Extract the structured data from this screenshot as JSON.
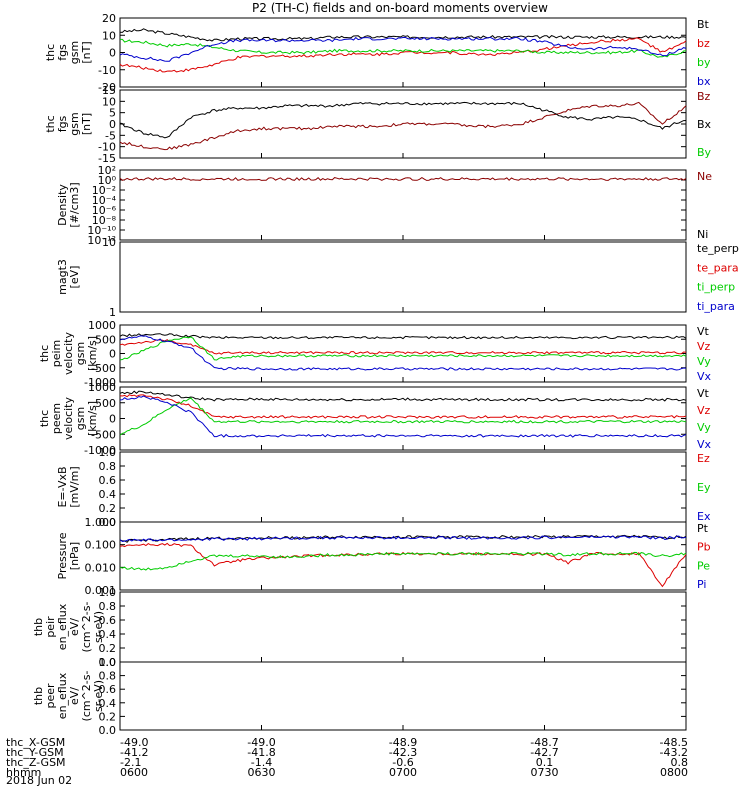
{
  "title": "P2 (TH-C) fields and on-board moments overview",
  "date_label": "2018 Jun 02",
  "chart_data": {
    "type": "line",
    "title": "P2 (TH-C) fields and on-board moments overview",
    "x_range_hhmm": [
      "0600",
      "0800"
    ],
    "panels": [
      {
        "ylabel": [
          "thc",
          "fgs",
          "gsm",
          "[nT]"
        ],
        "ylim": [
          -20,
          20
        ],
        "yticks": [
          "20",
          "10",
          "0",
          "-10",
          "-20"
        ],
        "series": [
          {
            "name": "Bt",
            "color": "#000000",
            "values": [
              12,
              13,
              11,
              9,
              7,
              8,
              8,
              8,
              8,
              9,
              9,
              9,
              9,
              9,
              9,
              9,
              9,
              9,
              9,
              9,
              9,
              9,
              9,
              9,
              9
            ]
          },
          {
            "name": "bz",
            "color": "#dd0000",
            "values": [
              -7,
              -9,
              -11,
              -10,
              -7,
              -3,
              -2,
              -2,
              -2,
              -1,
              -1,
              -1,
              0,
              0,
              0,
              -1,
              -1,
              0,
              2,
              4,
              6,
              7,
              8,
              0,
              6
            ]
          },
          {
            "name": "by",
            "color": "#00cc00",
            "values": [
              7,
              6,
              4,
              5,
              3,
              1,
              0,
              0,
              0,
              1,
              1,
              1,
              1,
              1,
              1,
              1,
              1,
              1,
              0,
              0,
              0,
              0,
              1,
              -3,
              1
            ]
          },
          {
            "name": "bx",
            "color": "#0000cc",
            "values": [
              -1,
              -3,
              -5,
              0,
              5,
              7,
              7,
              7,
              7,
              7,
              8,
              8,
              8,
              8,
              8,
              8,
              8,
              8,
              6,
              3,
              2,
              3,
              2,
              -2,
              3
            ]
          }
        ],
        "legend": [
          "Bt",
          "bz",
          "by",
          "bx"
        ]
      },
      {
        "ylabel": [
          "thc",
          "fgs",
          "gsm",
          "[nT]"
        ],
        "ylim": [
          -15,
          15
        ],
        "yticks": [
          "15",
          "10",
          "5",
          "0",
          "-5",
          "-10",
          "-15"
        ],
        "series": [
          {
            "name": "Bz",
            "color": "#8b0000",
            "values": [
              -8,
              -10,
              -11,
              -9,
              -6,
              -3,
              -2,
              -2,
              -2,
              -1,
              -1,
              -1,
              0,
              0,
              0,
              -1,
              -1,
              0,
              3,
              6,
              8,
              8,
              9,
              0,
              8
            ]
          },
          {
            "name": "Bx",
            "color": "#000000",
            "values": [
              0,
              -4,
              -6,
              3,
              6,
              7,
              7,
              8,
              8,
              8,
              9,
              9,
              9,
              9,
              9,
              9,
              9,
              9,
              6,
              3,
              2,
              3,
              2,
              -2,
              2
            ]
          }
        ],
        "legend": [
          "Bz",
          "Bx",
          "By"
        ]
      },
      {
        "ylabel": [
          "Density",
          "[#/cm3]"
        ],
        "ylim_log": [
          -12,
          2
        ],
        "yticks": [
          "10²",
          "10⁰",
          "10⁻²",
          "10⁻⁴",
          "10⁻⁶",
          "10⁻⁸",
          "10⁻¹⁰",
          "10⁻¹²"
        ],
        "series": [
          {
            "name": "Ne",
            "color": "#8b0000",
            "values_log": [
              0.2,
              0.2,
              0.2,
              0.2,
              0.2,
              0.2,
              0.2,
              0.2,
              0.2,
              0.2,
              0.2,
              0.2,
              0.2,
              0.2,
              0.2,
              0.2,
              0.2,
              0.2,
              0.2,
              0.2,
              0.2,
              0.2,
              0.2,
              0.2,
              0.2
            ]
          }
        ],
        "legend": [
          "Ne",
          "Ni"
        ]
      },
      {
        "ylabel": [
          "magt3",
          "[eV]"
        ],
        "yticks": [
          "10",
          "1"
        ],
        "series": [],
        "legend": [
          "te_perp",
          "te_para",
          "ti_perp",
          "ti_para"
        ]
      },
      {
        "ylabel": [
          "thc",
          "peim",
          "velocity",
          "gsm",
          "[km/s]"
        ],
        "ylim": [
          -1000,
          1000
        ],
        "yticks": [
          "1000",
          "500",
          "0",
          "-500",
          "-1000"
        ],
        "series": [
          {
            "name": "Vt",
            "color": "#000000",
            "values": [
              620,
              660,
              660,
              600,
              560,
              560,
              560,
              560,
              560,
              560,
              560,
              560,
              560,
              560,
              560,
              560,
              560,
              560,
              560,
              560,
              560,
              560,
              560,
              560,
              570
            ]
          },
          {
            "name": "Vz",
            "color": "#dd0000",
            "values": [
              300,
              400,
              460,
              300,
              0,
              30,
              30,
              30,
              30,
              30,
              30,
              30,
              30,
              30,
              30,
              30,
              30,
              30,
              30,
              30,
              30,
              30,
              30,
              30,
              30
            ]
          },
          {
            "name": "Vy",
            "color": "#00cc00",
            "values": [
              -250,
              100,
              450,
              600,
              -200,
              -100,
              -80,
              -80,
              -80,
              -80,
              -80,
              -80,
              -80,
              -80,
              -80,
              -80,
              -80,
              -80,
              -80,
              -80,
              -80,
              -80,
              -80,
              -80,
              -80
            ]
          },
          {
            "name": "Vx",
            "color": "#0000cc",
            "values": [
              500,
              600,
              420,
              200,
              -530,
              -530,
              -540,
              -540,
              -540,
              -540,
              -540,
              -540,
              -540,
              -540,
              -540,
              -540,
              -540,
              -540,
              -540,
              -540,
              -540,
              -540,
              -540,
              -540,
              -540
            ]
          }
        ],
        "legend": [
          "Vt",
          "Vz",
          "Vy",
          "Vx"
        ]
      },
      {
        "ylabel": [
          "thc",
          "peem",
          "velocity",
          "gsm",
          "[km/s]"
        ],
        "ylim": [
          -1000,
          1000
        ],
        "yticks": [
          "1000",
          "500",
          "0",
          "-500",
          "-1000"
        ],
        "series": [
          {
            "name": "Vt",
            "color": "#000000",
            "values": [
              800,
              850,
              750,
              650,
              600,
              600,
              620,
              600,
              600,
              600,
              600,
              600,
              620,
              600,
              600,
              600,
              600,
              600,
              600,
              600,
              600,
              600,
              600,
              600,
              600
            ]
          },
          {
            "name": "Vz",
            "color": "#dd0000",
            "values": [
              700,
              750,
              600,
              400,
              50,
              50,
              50,
              50,
              50,
              50,
              50,
              50,
              50,
              50,
              50,
              50,
              50,
              50,
              50,
              50,
              50,
              50,
              50,
              50,
              50
            ]
          },
          {
            "name": "Vy",
            "color": "#00cc00",
            "values": [
              -500,
              -200,
              300,
              650,
              -100,
              -100,
              -100,
              -100,
              -100,
              -100,
              -100,
              -100,
              -100,
              -100,
              -100,
              -100,
              -100,
              -100,
              -100,
              -100,
              -100,
              -100,
              -100,
              -100,
              -100
            ]
          },
          {
            "name": "Vx",
            "color": "#0000cc",
            "values": [
              600,
              700,
              500,
              200,
              -550,
              -550,
              -550,
              -550,
              -550,
              -550,
              -550,
              -550,
              -550,
              -550,
              -550,
              -550,
              -550,
              -550,
              -550,
              -550,
              -550,
              -550,
              -550,
              -550,
              -550
            ]
          }
        ],
        "legend": [
          "Vt",
          "Vz",
          "Vy",
          "Vx"
        ]
      },
      {
        "ylabel": [
          "E=-VxB",
          "[mV/m]"
        ],
        "yticks": [
          "1.0",
          "0.8",
          "0.6",
          "0.4",
          "0.2",
          "0.0"
        ],
        "series": [],
        "legend": [
          "Ez",
          "Ey",
          "Ex"
        ]
      },
      {
        "ylabel": [
          "Pressure",
          "[nPa]"
        ],
        "ylim_log": [
          -3,
          0
        ],
        "yticks": [
          "1.000",
          "0.100",
          "0.010",
          "0.001"
        ],
        "series": [
          {
            "name": "Pt",
            "color": "#000000",
            "values_log": [
              -0.85,
              -0.8,
              -0.78,
              -0.75,
              -0.72,
              -0.72,
              -0.7,
              -0.7,
              -0.68,
              -0.67,
              -0.66,
              -0.66,
              -0.66,
              -0.66,
              -0.66,
              -0.66,
              -0.66,
              -0.66,
              -0.65,
              -0.65,
              -0.64,
              -0.64,
              -0.64,
              -0.7,
              -0.64
            ]
          },
          {
            "name": "Pb",
            "color": "#dd0000",
            "values_log": [
              -1.05,
              -1.0,
              -1.0,
              -1.05,
              -1.9,
              -1.7,
              -1.6,
              -1.55,
              -1.5,
              -1.45,
              -1.45,
              -1.4,
              -1.4,
              -1.4,
              -1.4,
              -1.4,
              -1.4,
              -1.45,
              -1.4,
              -1.8,
              -1.4,
              -1.4,
              -1.4,
              -2.8,
              -1.4
            ]
          },
          {
            "name": "Pe",
            "color": "#00cc00",
            "values_log": [
              -2.0,
              -2.1,
              -2.0,
              -1.7,
              -1.5,
              -1.5,
              -1.5,
              -1.55,
              -1.5,
              -1.45,
              -1.45,
              -1.4,
              -1.4,
              -1.4,
              -1.4,
              -1.4,
              -1.4,
              -1.4,
              -1.4,
              -1.45,
              -1.4,
              -1.4,
              -1.4,
              -1.5,
              -1.4
            ]
          },
          {
            "name": "Pi",
            "color": "#0000cc",
            "values_log": [
              -0.82,
              -0.8,
              -0.8,
              -0.78,
              -0.75,
              -0.75,
              -0.73,
              -0.72,
              -0.7,
              -0.7,
              -0.7,
              -0.7,
              -0.7,
              -0.7,
              -0.7,
              -0.7,
              -0.7,
              -0.7,
              -0.68,
              -0.68,
              -0.66,
              -0.66,
              -0.66,
              -0.72,
              -0.66
            ]
          }
        ],
        "legend": [
          "Pt",
          "Pb",
          "Pe",
          "Pi"
        ]
      },
      {
        "ylabel": [
          "thb",
          "peir",
          "en_eflux",
          "eV/",
          "(cm^2-s-",
          "sr-eV)"
        ],
        "yticks": [
          "1.0",
          "0.8",
          "0.6",
          "0.4",
          "0.2",
          "0.0"
        ],
        "series": [],
        "legend": []
      },
      {
        "ylabel": [
          "thb",
          "peer",
          "en_eflux",
          "eV/",
          "(cm^2-s-",
          "sr-eV)"
        ],
        "yticks": [
          "1.0",
          "0.8",
          "0.6",
          "0.4",
          "0.2",
          "0.0"
        ],
        "series": [],
        "legend": []
      }
    ],
    "x_axis_rows": [
      {
        "label": "thc_X-GSM",
        "values": [
          "-49.0",
          "-49.0",
          "-48.9",
          "-48.7",
          "-48.5"
        ]
      },
      {
        "label": "thc_Y-GSM",
        "values": [
          "-41.2",
          "-41.8",
          "-42.3",
          "-42.7",
          "-43.2"
        ]
      },
      {
        "label": "thc_Z-GSM",
        "values": [
          "-2.1",
          "-1.4",
          "-0.6",
          "0.1",
          "0.8"
        ]
      },
      {
        "label": "hhmm",
        "values": [
          "0600",
          "0630",
          "0700",
          "0730",
          "0800"
        ]
      }
    ]
  }
}
